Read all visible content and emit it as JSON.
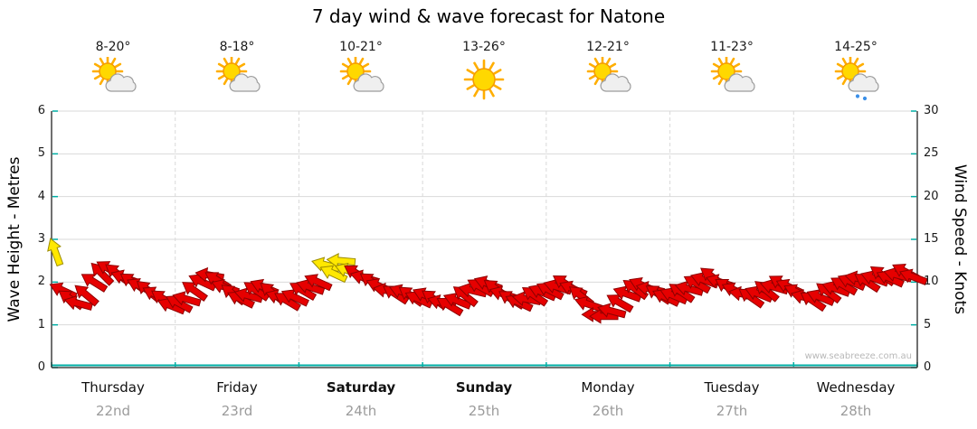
{
  "title": "7 day wind & wave forecast for Natone",
  "watermark": "www.seabreeze.com.au",
  "axes": {
    "left": {
      "label": "Wave Height - Metres",
      "ticks": [
        "6",
        "5",
        "4",
        "3",
        "2",
        "1",
        "0"
      ]
    },
    "right": {
      "label": "Wind Speed - Knots",
      "ticks": [
        "30",
        "25",
        "20",
        "15",
        "10",
        "5",
        "0"
      ]
    }
  },
  "days": [
    {
      "name": "Thursday",
      "date": "22nd",
      "temp": "8-20°",
      "icon": "sun-cloud"
    },
    {
      "name": "Friday",
      "date": "23rd",
      "temp": "8-18°",
      "icon": "sun-cloud"
    },
    {
      "name": "Saturday",
      "date": "24th",
      "temp": "10-21°",
      "icon": "sun-cloud"
    },
    {
      "name": "Sunday",
      "date": "25th",
      "temp": "13-26°",
      "icon": "sun"
    },
    {
      "name": "Monday",
      "date": "26th",
      "temp": "12-21°",
      "icon": "sun-cloud"
    },
    {
      "name": "Tuesday",
      "date": "27th",
      "temp": "11-23°",
      "icon": "sun-cloud"
    },
    {
      "name": "Wednesday",
      "date": "28th",
      "temp": "14-25°",
      "icon": "sun-cloud-rain"
    }
  ],
  "colors": {
    "arrow_red": "#E60000",
    "arrow_red_stroke": "#8F0000",
    "arrow_yellow": "#FFE800",
    "arrow_yellow_stroke": "#9C8C00",
    "teal": "#00AEA4",
    "grid": "#d9d9d9",
    "axis": "#222222",
    "date_gray": "#9b9b9b"
  },
  "chart_data": {
    "type": "scatter",
    "subtype": "wind-arrow-forecast",
    "title": "7 day wind & wave forecast for Natone",
    "categories": [
      "Thursday 22nd",
      "Friday 23rd",
      "Saturday 24th",
      "Sunday 25th",
      "Monday 26th",
      "Tuesday 27th",
      "Wednesday 28th"
    ],
    "temperatures_c": [
      "8-20",
      "8-18",
      "10-21",
      "13-26",
      "12-21",
      "11-23",
      "14-25"
    ],
    "weather_icons": [
      "sun-cloud",
      "sun-cloud",
      "sun-cloud",
      "sun",
      "sun-cloud",
      "sun-cloud",
      "sun-cloud-rain"
    ],
    "y_left": {
      "label": "Wave Height - Metres",
      "range": [
        0,
        6
      ],
      "tick_step": 1
    },
    "y_right": {
      "label": "Wind Speed - Knots",
      "range": [
        0,
        30
      ],
      "tick_step": 5
    },
    "grid": "on",
    "wave_height_series": {
      "constant_m": 0
    },
    "arrow_units": "[day_x_0_to_7, wind_speed_knots, direction_deg_cw_from_east, color r|y]",
    "arrows": [
      [
        0.031,
        13.5,
        250,
        "y"
      ],
      [
        0.094,
        9,
        205,
        "r"
      ],
      [
        0.156,
        8,
        215,
        "r"
      ],
      [
        0.219,
        7.5,
        195,
        "r"
      ],
      [
        0.281,
        8.5,
        220,
        "r"
      ],
      [
        0.344,
        10,
        212,
        "r"
      ],
      [
        0.406,
        11,
        225,
        "r"
      ],
      [
        0.469,
        11.5,
        210,
        "r"
      ],
      [
        0.531,
        11,
        218,
        "r"
      ],
      [
        0.594,
        10.5,
        200,
        "r"
      ],
      [
        0.656,
        10,
        214,
        "r"
      ],
      [
        0.719,
        9.5,
        206,
        "r"
      ],
      [
        0.781,
        9,
        220,
        "r"
      ],
      [
        0.844,
        8.5,
        208,
        "r"
      ],
      [
        0.906,
        8,
        215,
        "r"
      ],
      [
        0.969,
        7.2,
        202,
        "r"
      ],
      [
        1.031,
        7.5,
        208,
        "r"
      ],
      [
        1.094,
        8,
        196,
        "r"
      ],
      [
        1.156,
        9,
        215,
        "r"
      ],
      [
        1.219,
        10,
        205,
        "r"
      ],
      [
        1.281,
        10.8,
        190,
        "r"
      ],
      [
        1.344,
        10.2,
        212,
        "r"
      ],
      [
        1.406,
        9.4,
        200,
        "r"
      ],
      [
        1.469,
        8.6,
        218,
        "r"
      ],
      [
        1.531,
        8,
        206,
        "r"
      ],
      [
        1.594,
        8.4,
        195,
        "r"
      ],
      [
        1.656,
        9,
        214,
        "r"
      ],
      [
        1.719,
        9.4,
        203,
        "r"
      ],
      [
        1.781,
        8.8,
        219,
        "r"
      ],
      [
        1.844,
        8.2,
        199,
        "r"
      ],
      [
        1.906,
        7.8,
        211,
        "r"
      ],
      [
        1.969,
        8.2,
        205,
        "r"
      ],
      [
        2.031,
        9,
        210,
        "r"
      ],
      [
        2.094,
        9.4,
        198,
        "r"
      ],
      [
        2.156,
        10,
        204,
        "r"
      ],
      [
        2.219,
        12,
        195,
        "y"
      ],
      [
        2.281,
        11,
        205,
        "y"
      ],
      [
        2.344,
        12.5,
        185,
        "y"
      ],
      [
        2.406,
        11.3,
        200,
        "y"
      ],
      [
        2.469,
        11,
        212,
        "r"
      ],
      [
        2.531,
        10.5,
        196,
        "r"
      ],
      [
        2.594,
        10,
        215,
        "r"
      ],
      [
        2.656,
        9.5,
        203,
        "r"
      ],
      [
        2.719,
        9,
        190,
        "r"
      ],
      [
        2.781,
        8.6,
        213,
        "r"
      ],
      [
        2.844,
        8.8,
        201,
        "r"
      ],
      [
        2.906,
        8.4,
        216,
        "r"
      ],
      [
        2.969,
        8,
        205,
        "r"
      ],
      [
        3.031,
        8.4,
        204,
        "r"
      ],
      [
        3.094,
        8,
        215,
        "r"
      ],
      [
        3.156,
        7.6,
        196,
        "r"
      ],
      [
        3.219,
        7.2,
        211,
        "r"
      ],
      [
        3.281,
        7.8,
        202,
        "r"
      ],
      [
        3.344,
        8.4,
        218,
        "r"
      ],
      [
        3.406,
        9,
        193,
        "r"
      ],
      [
        3.469,
        9.4,
        209,
        "r"
      ],
      [
        3.531,
        9.8,
        200,
        "r"
      ],
      [
        3.594,
        9.2,
        216,
        "r"
      ],
      [
        3.656,
        8.6,
        198,
        "r"
      ],
      [
        3.719,
        8,
        212,
        "r"
      ],
      [
        3.781,
        7.6,
        205,
        "r"
      ],
      [
        3.844,
        8,
        190,
        "r"
      ],
      [
        3.906,
        8.4,
        214,
        "r"
      ],
      [
        3.969,
        8.8,
        203,
        "r"
      ],
      [
        4.031,
        9,
        207,
        "r"
      ],
      [
        4.094,
        9.4,
        197,
        "r"
      ],
      [
        4.156,
        9.8,
        213,
        "r"
      ],
      [
        4.219,
        9.2,
        203,
        "r"
      ],
      [
        4.281,
        8.4,
        218,
        "r"
      ],
      [
        4.344,
        7.4,
        199,
        "r"
      ],
      [
        4.406,
        6.2,
        180,
        "r"
      ],
      [
        4.469,
        6,
        180,
        "r"
      ],
      [
        4.531,
        6.6,
        195,
        "r"
      ],
      [
        4.594,
        7.6,
        210,
        "r"
      ],
      [
        4.656,
        8.6,
        200,
        "r"
      ],
      [
        4.719,
        9.2,
        216,
        "r"
      ],
      [
        4.781,
        9.6,
        204,
        "r"
      ],
      [
        4.844,
        9.2,
        192,
        "r"
      ],
      [
        4.906,
        8.6,
        214,
        "r"
      ],
      [
        4.969,
        8.2,
        206,
        "r"
      ],
      [
        5.031,
        8.4,
        203,
        "r"
      ],
      [
        5.094,
        8.8,
        214,
        "r"
      ],
      [
        5.156,
        9.2,
        195,
        "r"
      ],
      [
        5.219,
        9.8,
        209,
        "r"
      ],
      [
        5.281,
        10.2,
        200,
        "r"
      ],
      [
        5.344,
        10.6,
        217,
        "r"
      ],
      [
        5.406,
        10,
        198,
        "r"
      ],
      [
        5.469,
        9.4,
        212,
        "r"
      ],
      [
        5.531,
        9,
        204,
        "r"
      ],
      [
        5.594,
        8.6,
        190,
        "r"
      ],
      [
        5.656,
        8.2,
        215,
        "r"
      ],
      [
        5.719,
        8.6,
        202,
        "r"
      ],
      [
        5.781,
        9,
        219,
        "r"
      ],
      [
        5.844,
        9.4,
        196,
        "r"
      ],
      [
        5.906,
        9.8,
        211,
        "r"
      ],
      [
        5.969,
        9.4,
        205,
        "r"
      ],
      [
        6.031,
        8.8,
        206,
        "r"
      ],
      [
        6.094,
        8.2,
        196,
        "r"
      ],
      [
        6.156,
        7.8,
        214,
        "r"
      ],
      [
        6.219,
        8.2,
        202,
        "r"
      ],
      [
        6.281,
        8.8,
        217,
        "r"
      ],
      [
        6.344,
        9.2,
        199,
        "r"
      ],
      [
        6.406,
        9.6,
        210,
        "r"
      ],
      [
        6.469,
        10,
        203,
        "r"
      ],
      [
        6.531,
        10.4,
        192,
        "r"
      ],
      [
        6.594,
        10,
        213,
        "r"
      ],
      [
        6.656,
        10.4,
        200,
        "r"
      ],
      [
        6.719,
        10.8,
        216,
        "r"
      ],
      [
        6.781,
        10.4,
        204,
        "r"
      ],
      [
        6.844,
        10.8,
        195,
        "r"
      ],
      [
        6.906,
        11.2,
        208,
        "r"
      ],
      [
        6.969,
        10.6,
        201,
        "r"
      ]
    ]
  }
}
